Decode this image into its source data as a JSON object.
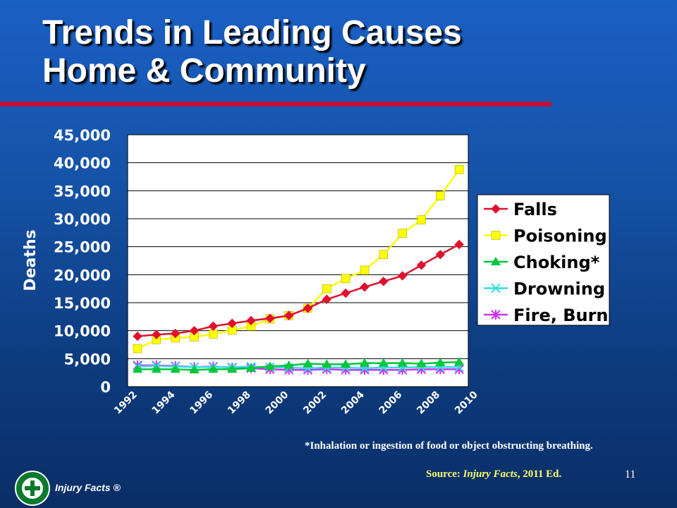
{
  "slide": {
    "title_line1": "Trends in Leading Causes",
    "title_line2": "Home & Community",
    "footnote": "*Inhalation or ingestion of food or object obstructing breathing.",
    "source_prefix": "Source: ",
    "source_title": "Injury Facts",
    "source_suffix": ", 2011 Ed.",
    "page_number": "11",
    "brand": "Injury Facts ®",
    "accent_color": "#c0103c"
  },
  "chart_data": {
    "type": "line",
    "title": "",
    "ylabel": "Deaths",
    "xlabel": "",
    "x": [
      1992,
      1993,
      1994,
      1995,
      1996,
      1997,
      1998,
      1999,
      2000,
      2001,
      2002,
      2003,
      2004,
      2005,
      2006,
      2007,
      2008,
      2009
    ],
    "x_ticks": [
      "1992",
      "1994",
      "1996",
      "1998",
      "2000",
      "2002",
      "2004",
      "2006",
      "2008",
      "2010"
    ],
    "y_ticks": [
      "0",
      "5,000",
      "10,000",
      "15,000",
      "20,000",
      "25,000",
      "30,000",
      "35,000",
      "40,000",
      "45,000"
    ],
    "ylim": [
      0,
      45000
    ],
    "grid": "horizontal",
    "legend_position": "right",
    "series": [
      {
        "name": "Falls",
        "color": "#e0102c",
        "marker": "diamond",
        "values": [
          9000,
          9300,
          9500,
          10000,
          10800,
          11300,
          11800,
          12200,
          12700,
          14000,
          15600,
          16700,
          17800,
          18800,
          19800,
          21700,
          23600,
          25400
        ]
      },
      {
        "name": "Poisoning",
        "color": "#ffff00",
        "marker": "square",
        "values": [
          6800,
          8400,
          8700,
          8900,
          9400,
          10100,
          10800,
          12100,
          12700,
          14000,
          17500,
          19300,
          20800,
          23600,
          27400,
          29800,
          34100,
          38800
        ]
      },
      {
        "name": "Choking*",
        "color": "#00c83c",
        "marker": "triangle",
        "values": [
          3100,
          3100,
          3100,
          3000,
          3100,
          3100,
          3300,
          3600,
          3800,
          4100,
          4000,
          4000,
          4200,
          4200,
          4200,
          4100,
          4300,
          4400
        ]
      },
      {
        "name": "Drowning",
        "color": "#33dddd",
        "marker": "x",
        "values": [
          3600,
          3700,
          3600,
          3500,
          3500,
          3500,
          3600,
          3500,
          3400,
          3300,
          3400,
          3400,
          3300,
          3400,
          3400,
          3500,
          3500,
          3500
        ]
      },
      {
        "name": "Fire, Burn",
        "color": "#cc33ff",
        "marker": "asterisk",
        "values": [
          3800,
          3800,
          3700,
          3500,
          3600,
          3400,
          3300,
          3100,
          3000,
          3000,
          3100,
          3000,
          3000,
          3000,
          3000,
          3100,
          3100,
          3100
        ]
      }
    ]
  }
}
